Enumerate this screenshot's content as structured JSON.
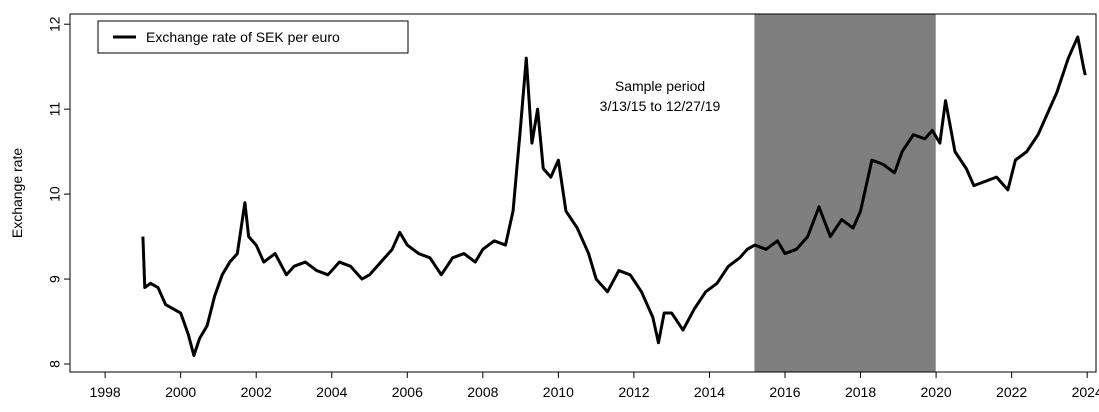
{
  "chart_data": {
    "type": "line",
    "y_label": "Exchange rate",
    "annotation": [
      "Sample period",
      "3/13/15 to 12/27/19"
    ],
    "shade": {
      "range": [
        2015.19,
        2019.99
      ],
      "color": "#7f7f7f"
    },
    "legend": "top-left",
    "x": [
      1999.0,
      1999.05,
      1999.2,
      1999.4,
      1999.6,
      1999.8,
      2000.0,
      2000.2,
      2000.35,
      2000.5,
      2000.7,
      2000.9,
      2001.1,
      2001.3,
      2001.5,
      2001.7,
      2001.8,
      2002.0,
      2002.2,
      2002.5,
      2002.8,
      2003.0,
      2003.3,
      2003.6,
      2003.9,
      2004.2,
      2004.5,
      2004.8,
      2005.0,
      2005.3,
      2005.6,
      2005.8,
      2006.0,
      2006.3,
      2006.6,
      2006.9,
      2007.2,
      2007.5,
      2007.8,
      2008.0,
      2008.3,
      2008.6,
      2008.8,
      2009.0,
      2009.15,
      2009.3,
      2009.45,
      2009.6,
      2009.8,
      2010.0,
      2010.2,
      2010.5,
      2010.8,
      2011.0,
      2011.3,
      2011.6,
      2011.9,
      2012.2,
      2012.5,
      2012.65,
      2012.8,
      2013.0,
      2013.3,
      2013.6,
      2013.9,
      2014.2,
      2014.5,
      2014.8,
      2015.0,
      2015.2,
      2015.5,
      2015.8,
      2016.0,
      2016.3,
      2016.6,
      2016.9,
      2017.2,
      2017.5,
      2017.8,
      2018.0,
      2018.3,
      2018.6,
      2018.9,
      2019.1,
      2019.4,
      2019.7,
      2019.9,
      2020.1,
      2020.25,
      2020.5,
      2020.8,
      2021.0,
      2021.3,
      2021.6,
      2021.9,
      2022.1,
      2022.4,
      2022.7,
      2022.9,
      2023.2,
      2023.5,
      2023.75,
      2023.9,
      2023.95
    ],
    "series": [
      {
        "name": "Exchange rate of SEK per euro",
        "color": "#000000",
        "values": [
          9.5,
          8.9,
          8.95,
          8.9,
          8.7,
          8.65,
          8.6,
          8.35,
          8.1,
          8.3,
          8.45,
          8.8,
          9.05,
          9.2,
          9.3,
          9.9,
          9.5,
          9.4,
          9.2,
          9.3,
          9.05,
          9.15,
          9.2,
          9.1,
          9.05,
          9.2,
          9.15,
          9.0,
          9.05,
          9.2,
          9.35,
          9.55,
          9.4,
          9.3,
          9.25,
          9.05,
          9.25,
          9.3,
          9.2,
          9.35,
          9.45,
          9.4,
          9.8,
          10.8,
          11.6,
          10.6,
          11.0,
          10.3,
          10.2,
          10.4,
          9.8,
          9.6,
          9.3,
          9.0,
          8.85,
          9.1,
          9.05,
          8.85,
          8.55,
          8.25,
          8.6,
          8.6,
          8.4,
          8.65,
          8.85,
          8.95,
          9.15,
          9.25,
          9.35,
          9.4,
          9.35,
          9.45,
          9.3,
          9.35,
          9.5,
          9.85,
          9.5,
          9.7,
          9.6,
          9.8,
          10.4,
          10.35,
          10.25,
          10.5,
          10.7,
          10.65,
          10.75,
          10.6,
          11.1,
          10.5,
          10.3,
          10.1,
          10.15,
          10.2,
          10.05,
          10.4,
          10.5,
          10.7,
          10.9,
          11.2,
          11.6,
          11.85,
          11.5,
          11.4
        ]
      }
    ],
    "xlim": [
      1997.07,
      2024.26
    ],
    "xticks": [
      1998,
      2000,
      2002,
      2004,
      2006,
      2008,
      2010,
      2012,
      2014,
      2016,
      2018,
      2020,
      2022,
      2024
    ],
    "ylim": [
      7.906,
      12.12
    ],
    "yticks": [
      8,
      9,
      10,
      11,
      12
    ]
  }
}
